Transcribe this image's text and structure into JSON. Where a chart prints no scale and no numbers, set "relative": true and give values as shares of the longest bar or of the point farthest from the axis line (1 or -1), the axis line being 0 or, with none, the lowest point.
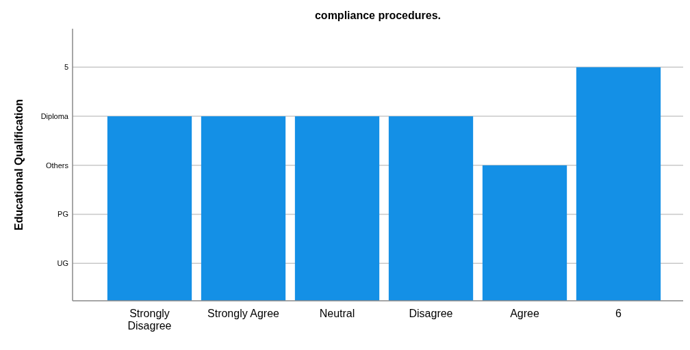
{
  "chart_data": {
    "type": "bar",
    "title": "compliance procedures.",
    "ylabel": "Educational Qualification",
    "categories": [
      "Strongly Disagree",
      "Strongly Agree",
      "Neutral",
      "Disagree",
      "Agree",
      "6"
    ],
    "values": [
      0.79,
      0.79,
      0.79,
      0.79,
      0.58,
      1
    ],
    "color": "#1490e6",
    "relative": true,
    "annotations": [
      "UG",
      "PG",
      "Others",
      "Diploma",
      "5"
    ],
    "grid": "y"
  }
}
